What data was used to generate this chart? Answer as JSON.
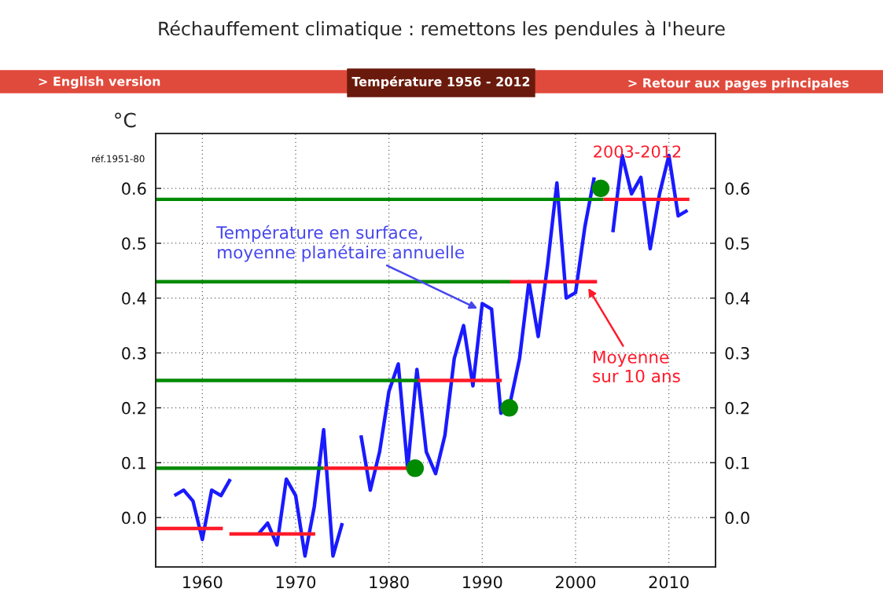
{
  "chart_data": {
    "type": "line",
    "title": "Réchauffement climatique : remettons les pendules à l'heure",
    "subtitle": "Température 1956 - 2012",
    "ylabel": "°C",
    "x": [
      1957,
      1958,
      1959,
      1960,
      1961,
      1962,
      1963,
      1964,
      1965,
      1966,
      1967,
      1968,
      1969,
      1970,
      1971,
      1972,
      1973,
      1974,
      1975,
      1976,
      1977,
      1978,
      1979,
      1980,
      1981,
      1982,
      1983,
      1984,
      1985,
      1986,
      1987,
      1988,
      1989,
      1990,
      1991,
      1992,
      1993,
      1994,
      1995,
      1996,
      1997,
      1998,
      1999,
      2000,
      2001,
      2002,
      2003,
      2004,
      2005,
      2006,
      2007,
      2008,
      2009,
      2010,
      2011,
      2012
    ],
    "series": [
      {
        "color": "#1a1aff",
        "values": [
          0.04,
          0.05,
          0.03,
          -0.04,
          0.05,
          0.04,
          0.07,
          null,
          null,
          -0.03,
          -0.01,
          -0.05,
          0.07,
          0.04,
          -0.07,
          0.02,
          0.16,
          -0.07,
          -0.01,
          null,
          0.15,
          0.05,
          0.12,
          0.23,
          0.28,
          0.09,
          0.27,
          0.12,
          0.08,
          0.15,
          0.29,
          0.35,
          0.24,
          0.39,
          0.38,
          0.19,
          0.21,
          0.29,
          0.43,
          0.33,
          0.46,
          0.61,
          0.4,
          0.41,
          0.53,
          0.62,
          null,
          0.52,
          0.66,
          0.59,
          0.62,
          0.49,
          0.59,
          0.66,
          0.55,
          0.56
        ]
      },
      {
        "type": "line",
        "color": "#008a00",
        "x": [
          1955,
          1973
        ],
        "values": [
          0.09,
          0.09
        ]
      },
      {
        "type": "line",
        "color": "#008a00",
        "x": [
          1955,
          1983.1
        ],
        "values": [
          0.25,
          0.25
        ]
      },
      {
        "type": "line",
        "color": "#008a00",
        "x": [
          1955,
          1993
        ],
        "values": [
          0.43,
          0.43
        ]
      },
      {
        "type": "line",
        "color": "#008a00",
        "x": [
          1955,
          2003
        ],
        "values": [
          0.58,
          0.58
        ]
      },
      {
        "type": "line",
        "color": "#ff1a2a",
        "x": [
          1955,
          1962.2
        ],
        "values": [
          -0.02,
          -0.02
        ]
      },
      {
        "type": "line",
        "color": "#ff1a2a",
        "x": [
          1962.9,
          1972.1
        ],
        "values": [
          -0.03,
          -0.03
        ]
      },
      {
        "type": "line",
        "color": "#ff1a2a",
        "x": [
          1973,
          1982.1
        ],
        "values": [
          0.09,
          0.09
        ]
      },
      {
        "type": "line",
        "color": "#ff1a2a",
        "x": [
          1983.1,
          1992.1
        ],
        "values": [
          0.25,
          0.25
        ]
      },
      {
        "type": "line",
        "color": "#ff1a2a",
        "x": [
          1993,
          2002.3
        ],
        "values": [
          0.43,
          0.43
        ]
      },
      {
        "type": "line",
        "color": "#ff1a2a",
        "x": [
          2003,
          2012.2
        ],
        "values": [
          0.58,
          0.58
        ]
      },
      {
        "type": "scatter",
        "color": "#008a00",
        "x": [
          1982.8,
          1992.9,
          2002.7
        ],
        "values": [
          0.09,
          0.2,
          0.6
        ]
      }
    ],
    "xlim": [
      1955,
      2015
    ],
    "xticks": [
      1960,
      1970,
      1980,
      1990,
      2000,
      2010
    ],
    "ylim": [
      -0.09,
      0.7
    ],
    "yticks": [
      {
        "value": 0,
        "label": "0.0"
      },
      0.1,
      0.2,
      0.3,
      0.4,
      0.5,
      0.6
    ],
    "y2lim": [
      -0.09,
      0.7
    ],
    "y2ticks": [
      {
        "value": 0,
        "label": "0.0"
      },
      0.1,
      0.2,
      0.3,
      0.4,
      0.5,
      0.6
    ],
    "grid": true,
    "line_style": "solid",
    "annotations": [
      {
        "text": "Température en surface,\nmoyenne planétaire annuelle",
        "x": 1989.6,
        "y": 0.38
      },
      {
        "text": "Moyenne\nsur 10 ans",
        "x": 2001.3,
        "y": 0.42
      },
      "2003-2012",
      "réf.1951-80",
      "> English version",
      "> Retour aux pages principales"
    ]
  }
}
